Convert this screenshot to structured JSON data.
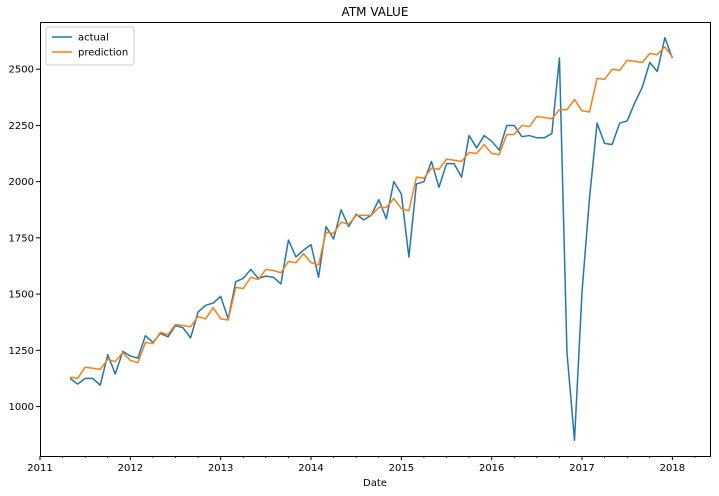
{
  "chart_data": {
    "type": "line",
    "title": "ATM VALUE",
    "xlabel": "Date",
    "ylabel": "",
    "x_tick_labels": [
      "2011",
      "2012",
      "2013",
      "2014",
      "2015",
      "2016",
      "2017",
      "2018"
    ],
    "y_ticks": [
      1000,
      1250,
      1500,
      1750,
      2000,
      2250,
      2500
    ],
    "xlim": [
      "2011-01-01",
      "2018-06-01"
    ],
    "ylim": [
      780,
      2710
    ],
    "grid": false,
    "legend": "top-left",
    "x": [
      "2011-05",
      "2011-06",
      "2011-07",
      "2011-08",
      "2011-09",
      "2011-10",
      "2011-11",
      "2011-12",
      "2012-01",
      "2012-02",
      "2012-03",
      "2012-04",
      "2012-05",
      "2012-06",
      "2012-07",
      "2012-08",
      "2012-09",
      "2012-10",
      "2012-11",
      "2012-12",
      "2013-01",
      "2013-02",
      "2013-03",
      "2013-04",
      "2013-05",
      "2013-06",
      "2013-07",
      "2013-08",
      "2013-09",
      "2013-10",
      "2013-11",
      "2013-12",
      "2014-01",
      "2014-02",
      "2014-03",
      "2014-04",
      "2014-05",
      "2014-06",
      "2014-07",
      "2014-08",
      "2014-09",
      "2014-10",
      "2014-11",
      "2014-12",
      "2015-01",
      "2015-02",
      "2015-03",
      "2015-04",
      "2015-05",
      "2015-06",
      "2015-07",
      "2015-08",
      "2015-09",
      "2015-10",
      "2015-11",
      "2015-12",
      "2016-01",
      "2016-02",
      "2016-03",
      "2016-04",
      "2016-05",
      "2016-06",
      "2016-07",
      "2016-08",
      "2016-09",
      "2016-10",
      "2016-11",
      "2016-12",
      "2017-01",
      "2017-02",
      "2017-03",
      "2017-04",
      "2017-05",
      "2017-06",
      "2017-07",
      "2017-08",
      "2017-09",
      "2017-10",
      "2017-11",
      "2017-12",
      "2018-01"
    ],
    "series": [
      {
        "name": "actual",
        "color": "#1f77b4",
        "values": [
          1125,
          1100,
          1125,
          1125,
          1095,
          1230,
          1145,
          1245,
          1225,
          1215,
          1315,
          1285,
          1325,
          1310,
          1360,
          1350,
          1305,
          1420,
          1450,
          1460,
          1490,
          1390,
          1555,
          1570,
          1610,
          1570,
          1580,
          1575,
          1545,
          1740,
          1665,
          1695,
          1720,
          1575,
          1800,
          1745,
          1875,
          1800,
          1855,
          1830,
          1850,
          1920,
          1835,
          2000,
          1945,
          1665,
          1990,
          2000,
          2090,
          1975,
          2080,
          2080,
          2020,
          2205,
          2150,
          2205,
          2180,
          2140,
          2250,
          2250,
          2200,
          2205,
          2195,
          2195,
          2215,
          2550,
          1240,
          850,
          1510,
          1930,
          2260,
          2170,
          2165,
          2260,
          2270,
          2350,
          2420,
          2530,
          2490,
          2640,
          2550
        ]
      },
      {
        "name": "prediction",
        "color": "#ff7f0e",
        "values": [
          1130,
          1125,
          1175,
          1170,
          1165,
          1210,
          1200,
          1240,
          1205,
          1195,
          1285,
          1280,
          1330,
          1320,
          1365,
          1360,
          1355,
          1400,
          1390,
          1440,
          1390,
          1385,
          1530,
          1525,
          1575,
          1565,
          1610,
          1605,
          1595,
          1645,
          1640,
          1680,
          1640,
          1630,
          1775,
          1770,
          1820,
          1810,
          1850,
          1850,
          1850,
          1885,
          1885,
          1925,
          1880,
          1870,
          2020,
          2015,
          2060,
          2055,
          2100,
          2095,
          2090,
          2130,
          2125,
          2165,
          2125,
          2120,
          2210,
          2210,
          2250,
          2245,
          2290,
          2285,
          2280,
          2320,
          2320,
          2365,
          2315,
          2310,
          2460,
          2455,
          2500,
          2495,
          2540,
          2535,
          2530,
          2570,
          2565,
          2600,
          2555
        ]
      }
    ]
  }
}
